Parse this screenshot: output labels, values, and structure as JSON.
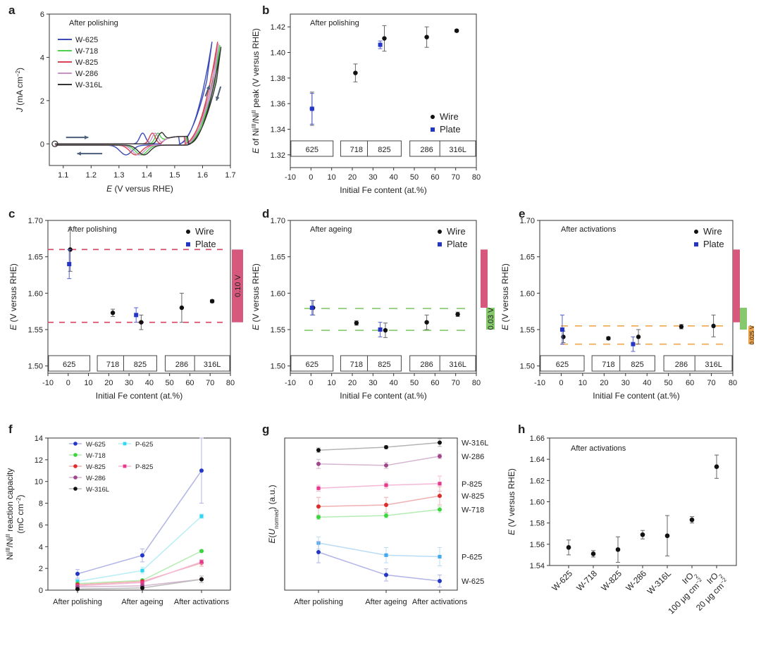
{
  "figure": {
    "panel_letters": [
      "a",
      "b",
      "c",
      "d",
      "e",
      "f",
      "g",
      "h"
    ]
  },
  "chart_data": [
    {
      "panel": "a",
      "type": "line",
      "annotation": "After polishing",
      "xlabel_var": "E",
      "xlabel_unit": "(V versus RHE)",
      "ylabel_var": "J",
      "ylabel_unit": "(mA cm",
      "ylabel_sup": "−2",
      "ylabel_close": ")",
      "xlim": [
        1.05,
        1.7
      ],
      "ylim": [
        -1,
        6
      ],
      "xticks": [
        "1.1",
        "1.2",
        "1.3",
        "1.4",
        "1.5",
        "1.6",
        "1.7"
      ],
      "yticks": [
        "0",
        "2",
        "4",
        "6"
      ],
      "series": [
        {
          "name": "W-625",
          "color": "#3b4cb8",
          "onset": 1.515,
          "peak": 1.385
        },
        {
          "name": "W-718",
          "color": "#4cd24c",
          "onset": 1.545,
          "peak": 1.44
        },
        {
          "name": "W-825",
          "color": "#d8434f",
          "onset": 1.535,
          "peak": 1.42
        },
        {
          "name": "W-286",
          "color": "#c995c9",
          "onset": 1.54,
          "peak": 1.43
        },
        {
          "name": "W-316L",
          "color": "#333333",
          "onset": 1.55,
          "peak": 1.45
        }
      ]
    },
    {
      "panel": "b",
      "type": "scatter",
      "annotation": "After polishing",
      "ylabel": "E of Ni",
      "ylabel_sup1": "III",
      "ylabel_mid": "/Ni",
      "ylabel_sup2": "II",
      "ylabel_end": " peak (V versus RHE)",
      "xlabel": "Initial Fe content (at.%)",
      "xlim": [
        -10,
        80
      ],
      "ylim": [
        1.31,
        1.43
      ],
      "xticks": [
        "-10",
        "0",
        "10",
        "20",
        "30",
        "40",
        "50",
        "60",
        "70",
        "80"
      ],
      "yticks": [
        "1.32",
        "1.34",
        "1.36",
        "1.38",
        "1.40",
        "1.42"
      ],
      "legend": [
        "Wire",
        "Plate"
      ],
      "boxes": [
        "625",
        "718",
        "825",
        "286",
        "316L"
      ],
      "wire": [
        {
          "x": 0.5,
          "y": 1.356,
          "err": 0.013
        },
        {
          "x": 21.5,
          "y": 1.384,
          "err": 0.007
        },
        {
          "x": 35.5,
          "y": 1.411,
          "err": 0.01
        },
        {
          "x": 56,
          "y": 1.412,
          "err": 0.008
        },
        {
          "x": 70.5,
          "y": 1.417,
          "err": 0.001
        }
      ],
      "plate": [
        {
          "x": 0.5,
          "y": 1.356,
          "err": 0.012
        },
        {
          "x": 33.5,
          "y": 1.406,
          "err": 0.003
        }
      ]
    },
    {
      "panel": "c",
      "type": "scatter",
      "annotation": "After polishing",
      "ylabel": "E (V versus RHE)",
      "xlabel": "Initial Fe content (at.%)",
      "xlim": [
        -10,
        80
      ],
      "ylim": [
        1.49,
        1.7
      ],
      "xticks": [
        "-10",
        "0",
        "10",
        "20",
        "30",
        "40",
        "50",
        "60",
        "70",
        "80"
      ],
      "yticks": [
        "1.50",
        "1.55",
        "1.60",
        "1.65",
        "1.70"
      ],
      "legend": [
        "Wire",
        "Plate"
      ],
      "boxes": [
        "625",
        "718",
        "825",
        "286",
        "316L"
      ],
      "band_label": "0.10 V",
      "band_color": "#d6587c",
      "dash_color": "#d8435f",
      "dash_levels": [
        1.66,
        1.56
      ],
      "wire": [
        {
          "x": 1,
          "y": 1.66,
          "err": 0.03
        },
        {
          "x": 22,
          "y": 1.573,
          "err": 0.005
        },
        {
          "x": 36,
          "y": 1.56,
          "err": 0.01
        },
        {
          "x": 56,
          "y": 1.58,
          "err": 0.02
        },
        {
          "x": 71,
          "y": 1.589,
          "err": 0.002
        }
      ],
      "plate": [
        {
          "x": 0.5,
          "y": 1.64,
          "err": 0.02
        },
        {
          "x": 33.5,
          "y": 1.57,
          "err": 0.01
        }
      ]
    },
    {
      "panel": "d",
      "type": "scatter",
      "annotation": "After ageing",
      "ylabel": "E (V versus RHE)",
      "xlabel": "Initial Fe content (at.%)",
      "xlim": [
        -10,
        80
      ],
      "ylim": [
        1.49,
        1.7
      ],
      "xticks": [
        "-10",
        "0",
        "10",
        "20",
        "30",
        "40",
        "50",
        "60",
        "70",
        "80"
      ],
      "yticks": [
        "1.50",
        "1.55",
        "1.60",
        "1.65",
        "1.70"
      ],
      "legend": [
        "Wire",
        "Plate"
      ],
      "boxes": [
        "625",
        "718",
        "825",
        "286",
        "316L"
      ],
      "band_label": "0.03 V",
      "band_color": "#86c96c",
      "dash_color": "#86c96c",
      "dash_levels": [
        1.579,
        1.549
      ],
      "wire": [
        {
          "x": 1,
          "y": 1.58,
          "err": 0.01
        },
        {
          "x": 22,
          "y": 1.559,
          "err": 0.003
        },
        {
          "x": 36,
          "y": 1.549,
          "err": 0.01
        },
        {
          "x": 56,
          "y": 1.56,
          "err": 0.01
        },
        {
          "x": 71,
          "y": 1.571,
          "err": 0.003
        }
      ],
      "plate": [
        {
          "x": 0.5,
          "y": 1.58,
          "err": 0.01
        },
        {
          "x": 33.5,
          "y": 1.55,
          "err": 0.01
        }
      ]
    },
    {
      "panel": "e",
      "type": "scatter",
      "annotation": "After activations",
      "ylabel": "E (V versus RHE)",
      "xlabel": "Initial Fe content (at.%)",
      "xlim": [
        -10,
        80
      ],
      "ylim": [
        1.49,
        1.7
      ],
      "xticks": [
        "-10",
        "0",
        "10",
        "20",
        "30",
        "40",
        "50",
        "60",
        "70",
        "80"
      ],
      "yticks": [
        "1.50",
        "1.55",
        "1.60",
        "1.65",
        "1.70"
      ],
      "legend": [
        "Wire",
        "Plate"
      ],
      "boxes": [
        "625",
        "718",
        "825",
        "286",
        "316L"
      ],
      "band_label": "0.025 V",
      "band_color": "#f0a64c",
      "dash_color": "#f0a64c",
      "dash_levels": [
        1.555,
        1.53
      ],
      "wire": [
        {
          "x": 1,
          "y": 1.54,
          "err": 0.008
        },
        {
          "x": 22,
          "y": 1.538,
          "err": 0.002
        },
        {
          "x": 36,
          "y": 1.54,
          "err": 0.01
        },
        {
          "x": 56,
          "y": 1.554,
          "err": 0.003
        },
        {
          "x": 71,
          "y": 1.555,
          "err": 0.015
        }
      ],
      "plate": [
        {
          "x": 0.5,
          "y": 1.55,
          "err": 0.02
        },
        {
          "x": 33.5,
          "y": 1.53,
          "err": 0.01
        }
      ]
    },
    {
      "panel": "f",
      "type": "line",
      "ylabel_l1a": "Ni",
      "ylabel_l1s1": "III",
      "ylabel_l1b": "/Ni",
      "ylabel_l1s2": "II",
      "ylabel_l1c": " reaction capacity",
      "ylabel_l2a": "(mC cm",
      "ylabel_l2s": "−2",
      "ylabel_l2b": ")",
      "categories": [
        "After polishing",
        "After ageing",
        "After activations"
      ],
      "ylim": [
        0,
        14
      ],
      "yticks": [
        "0",
        "2",
        "4",
        "6",
        "8",
        "10",
        "12",
        "14"
      ],
      "series": [
        {
          "name": "W-625",
          "color": "#2436c8",
          "light": "#b0b4e6",
          "marker": "circle",
          "values": [
            1.5,
            3.2,
            11.0
          ],
          "err": [
            0.4,
            0.6,
            3.0
          ]
        },
        {
          "name": "P-625",
          "color": "#2fd8f0",
          "light": "#b8eef6",
          "marker": "square",
          "values": [
            0.8,
            1.8,
            6.8
          ],
          "err": [
            0.2,
            0.3,
            0.2
          ]
        },
        {
          "name": "W-718",
          "color": "#3bd63b",
          "light": "#b4ecb4",
          "marker": "circle",
          "values": [
            0.6,
            0.9,
            3.6
          ],
          "err": [
            0.1,
            0.1,
            0.1
          ]
        },
        {
          "name": "W-825",
          "color": "#e02b2b",
          "light": "#f0b0b0",
          "marker": "circle",
          "values": [
            0.5,
            0.8,
            2.5
          ],
          "err": [
            0.1,
            0.1,
            0.3
          ]
        },
        {
          "name": "P-825",
          "color": "#e8388c",
          "light": "#f4b8d6",
          "marker": "square",
          "values": [
            0.4,
            0.7,
            2.6
          ],
          "err": [
            0.1,
            0.1,
            0.2
          ]
        },
        {
          "name": "W-286",
          "color": "#a0468c",
          "light": "#d6b6d0",
          "marker": "circle",
          "values": [
            0.3,
            0.4,
            1.0
          ],
          "err": [
            0.1,
            0.1,
            0.3
          ]
        },
        {
          "name": "W-316L",
          "color": "#111111",
          "light": "#bbbbbb",
          "marker": "circle",
          "values": [
            0.1,
            0.2,
            1.0
          ],
          "err": [
            0.05,
            0.05,
            0.3
          ]
        }
      ]
    },
    {
      "panel": "g",
      "type": "line",
      "ylabel_a": "E(U",
      "ylabel_sub": "normed",
      "ylabel_b": ") (a.u.)",
      "categories": [
        "After polishing",
        "After ageing",
        "After activations"
      ],
      "ylim": [
        0,
        10
      ],
      "series": [
        {
          "name": "W-316L",
          "color": "#111111",
          "light": "#b4b4b4",
          "marker": "circle",
          "values": [
            9.2,
            9.4,
            9.7
          ],
          "err": [
            0.15,
            0.1,
            0.25
          ]
        },
        {
          "name": "W-286",
          "color": "#a0468c",
          "light": "#d6b6d0",
          "marker": "circle",
          "values": [
            8.3,
            8.2,
            8.8
          ],
          "err": [
            0.3,
            0.2,
            0.15
          ]
        },
        {
          "name": "P-825",
          "color": "#e8388c",
          "light": "#f4b8d6",
          "marker": "square",
          "values": [
            6.7,
            6.9,
            7.0
          ],
          "err": [
            0.2,
            0.2,
            0.5
          ]
        },
        {
          "name": "W-825",
          "color": "#e02b2b",
          "light": "#f0b0b0",
          "marker": "circle",
          "values": [
            5.5,
            5.6,
            6.2
          ],
          "err": [
            0.6,
            0.5,
            0.6
          ]
        },
        {
          "name": "W-718",
          "color": "#3bd63b",
          "light": "#b4ecb4",
          "marker": "circle",
          "values": [
            4.8,
            4.9,
            5.3
          ],
          "err": [
            0.15,
            0.15,
            0.2
          ]
        },
        {
          "name": "P-625",
          "color": "#44aaf0",
          "light": "#b8dcf6",
          "marker": "square",
          "values": [
            3.1,
            2.3,
            2.2
          ],
          "err": [
            0.4,
            0.5,
            0.6
          ]
        },
        {
          "name": "W-625",
          "color": "#2436c8",
          "light": "#b0b4e6",
          "marker": "circle",
          "values": [
            2.5,
            1.0,
            0.6
          ],
          "err": [
            0.7,
            0.4,
            0.4
          ]
        }
      ]
    },
    {
      "panel": "h",
      "type": "scatter",
      "annotation": "After activations",
      "ylabel": "E (V versus RHE)",
      "ylim": [
        1.54,
        1.66
      ],
      "yticks": [
        "1.54",
        "1.56",
        "1.58",
        "1.60",
        "1.62",
        "1.64",
        "1.66"
      ],
      "categories": [
        "W-625",
        "W-718",
        "W-825",
        "W-286",
        "W-316L",
        "IrO",
        "IrO"
      ],
      "cat_sub": [
        "",
        "",
        "",
        "",
        "",
        "2",
        "2"
      ],
      "cat_line2": [
        "",
        "",
        "",
        "",
        "",
        "100 μg cm",
        "20 μg cm"
      ],
      "cat_line2_sup": [
        "",
        "",
        "",
        "",
        "",
        "−2",
        "−2"
      ],
      "values": [
        1.557,
        1.551,
        1.555,
        1.569,
        1.568,
        1.583,
        1.633
      ],
      "err": [
        0.007,
        0.003,
        0.012,
        0.004,
        0.019,
        0.003,
        0.011
      ]
    }
  ]
}
